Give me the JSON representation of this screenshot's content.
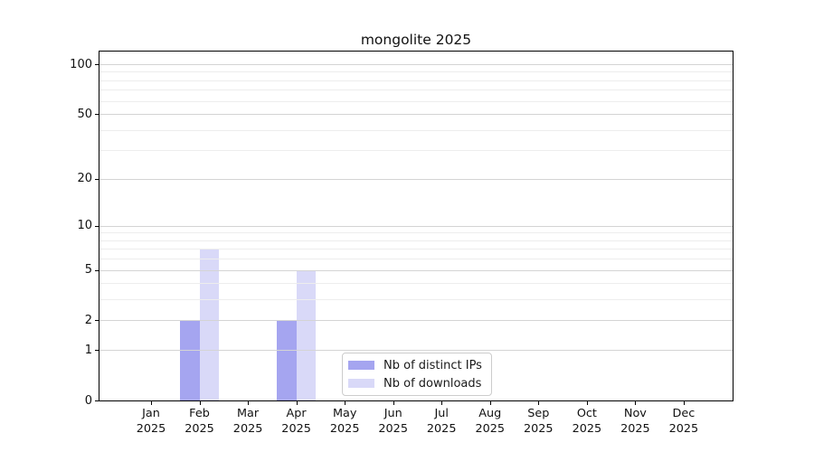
{
  "chart_data": {
    "type": "bar",
    "title": "mongolite 2025",
    "categories": [
      "Jan 2025",
      "Feb 2025",
      "Mar 2025",
      "Apr 2025",
      "May 2025",
      "Jun 2025",
      "Jul 2025",
      "Aug 2025",
      "Sep 2025",
      "Oct 2025",
      "Nov 2025",
      "Dec 2025"
    ],
    "series": [
      {
        "name": "Nb of distinct IPs",
        "color": "#a5a5f0",
        "values": [
          0,
          2,
          0,
          2,
          0,
          0,
          0,
          0,
          0,
          0,
          0,
          0
        ]
      },
      {
        "name": "Nb of downloads",
        "color": "#d9d9f8",
        "values": [
          0,
          7,
          0,
          5,
          0,
          0,
          0,
          0,
          0,
          0,
          0,
          0
        ]
      }
    ],
    "xlabel": "",
    "ylabel": "",
    "yscale": "log1p",
    "ylim": [
      0,
      119
    ],
    "yticks": [
      0,
      1,
      2,
      5,
      10,
      20,
      50,
      100
    ],
    "minor_gridlines": [
      3,
      4,
      6,
      7,
      8,
      9,
      30,
      40,
      60,
      70,
      80,
      90
    ],
    "grid": "horizontal",
    "legend_position": "bottom-center-inside"
  },
  "legend": {
    "items": [
      {
        "label": "Nb of distinct IPs",
        "color": "#a5a5f0"
      },
      {
        "label": "Nb of downloads",
        "color": "#d9d9f8"
      }
    ]
  }
}
